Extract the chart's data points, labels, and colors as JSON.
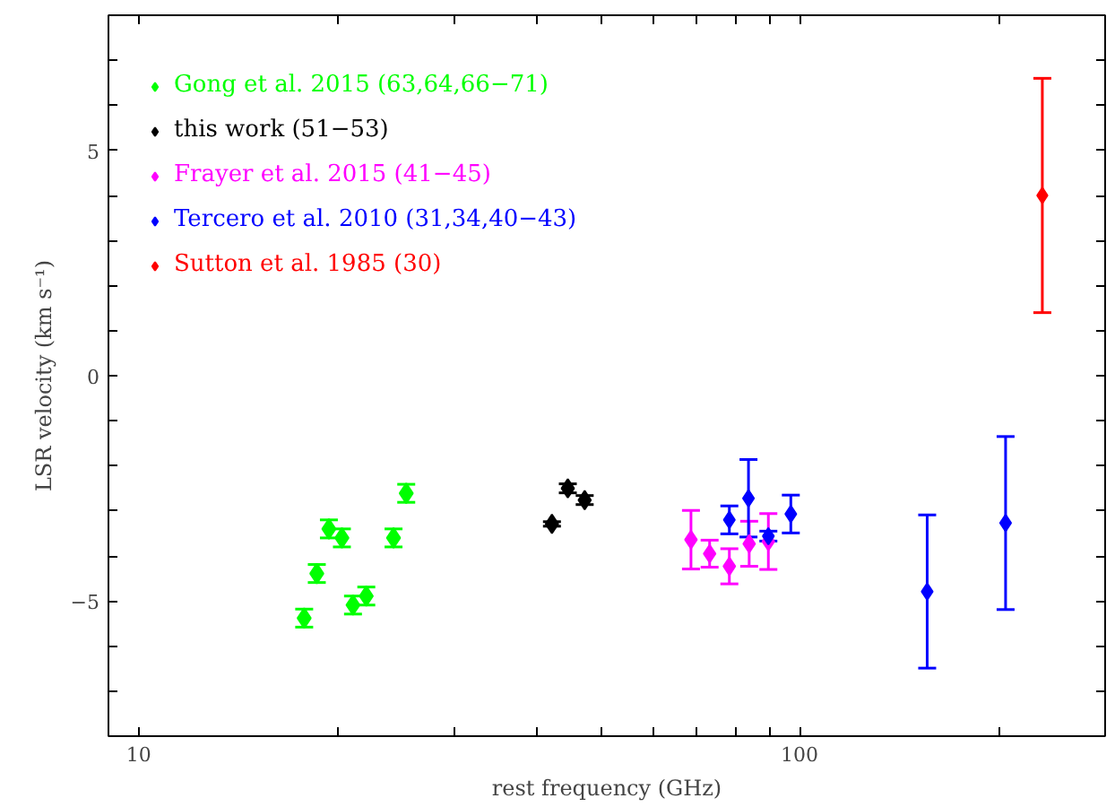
{
  "chart_data": {
    "type": "scatter",
    "xlabel": "rest frequency (GHz)",
    "ylabel": "LSR velocity (km s⁻¹)",
    "log": "x",
    "marker": "diamond",
    "legend": "top left",
    "grid": false,
    "xlim": [
      9,
      290
    ],
    "ylim": [
      -8,
      8
    ],
    "xticks": [
      10,
      {
        "value": 20,
        "label": null
      },
      {
        "value": 30,
        "label": null
      },
      {
        "value": 40,
        "label": null
      },
      {
        "value": 50,
        "label": null
      },
      {
        "value": 60,
        "label": null
      },
      {
        "value": 70,
        "label": null
      },
      {
        "value": 80,
        "label": null
      },
      {
        "value": 90,
        "label": null
      },
      100,
      {
        "value": 200,
        "label": null
      }
    ],
    "yticks": [
      {
        "value": -7,
        "label": null
      },
      {
        "value": -6,
        "label": null
      },
      -5,
      {
        "value": -4,
        "label": null
      },
      {
        "value": -3,
        "label": null
      },
      {
        "value": -2,
        "label": null
      },
      {
        "value": -1,
        "label": null
      },
      0,
      {
        "value": 1,
        "label": null
      },
      {
        "value": 2,
        "label": null
      },
      {
        "value": 3,
        "label": null
      },
      {
        "value": 4,
        "label": null
      },
      5,
      {
        "value": 6,
        "label": null
      },
      {
        "value": 7,
        "label": null
      }
    ],
    "series": [
      {
        "name": "Gong et al. 2015 (63,64,66−71)",
        "color": "#00ff00",
        "x": [
          17.8,
          18.6,
          19.4,
          20.3,
          21.1,
          22.1,
          24.3,
          25.4
        ],
        "values": [
          -5.38,
          -4.39,
          -3.4,
          -3.6,
          -5.09,
          -4.89,
          -3.6,
          -2.61
        ],
        "errors": [
          0.2,
          0.2,
          0.2,
          0.2,
          0.2,
          0.2,
          0.2,
          0.2
        ]
      },
      {
        "name": "this work (51−53)",
        "color": "#000000",
        "x": [
          42.2,
          44.6,
          47.3
        ],
        "values": [
          -3.29,
          -2.5,
          -2.76
        ],
        "errors": [
          0.05,
          0.1,
          0.1
        ]
      },
      {
        "name": "Frayer et al. 2015 (41−45)",
        "color": "#ff00ff",
        "x": [
          68.5,
          73.1,
          78.3,
          83.9,
          89.7
        ],
        "values": [
          -3.64,
          -3.95,
          -4.23,
          -3.73,
          -3.68
        ],
        "errors": [
          0.65,
          0.3,
          0.39,
          0.5,
          0.62
        ]
      },
      {
        "name": "Tercero et al. 2010 (31,34,40−43)",
        "color": "#0000ff",
        "x": [
          78.3,
          83.7,
          89.7,
          97.0,
          156,
          205
        ],
        "values": [
          -3.2,
          -2.72,
          -3.56,
          -3.07,
          -4.79,
          -3.27
        ],
        "errors": [
          0.31,
          0.86,
          0.11,
          0.42,
          1.7,
          1.92
        ]
      },
      {
        "name": "Sutton et al. 1985 (30)",
        "color": "#ff0000",
        "x": [
          233
        ],
        "values": [
          4.0
        ],
        "errors": [
          2.6
        ]
      }
    ]
  }
}
